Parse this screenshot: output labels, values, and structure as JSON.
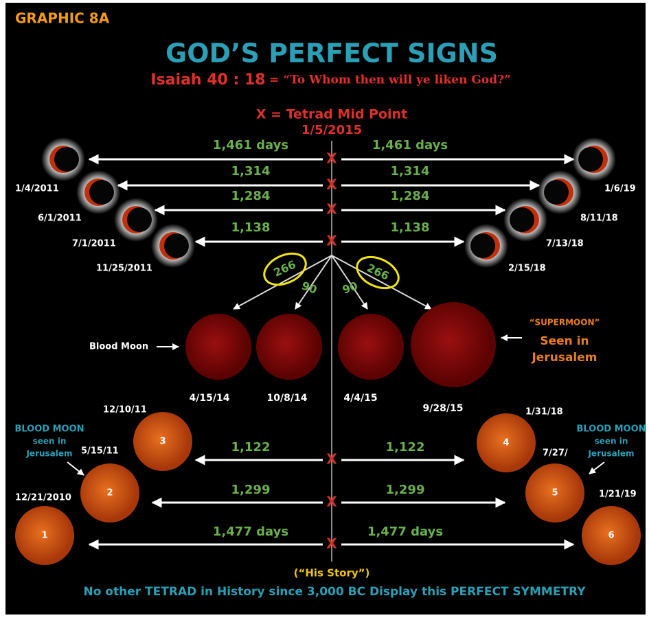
{
  "header": {
    "label": "GRAPHIC 8A",
    "title": "GOD’S PERFECT SIGNS",
    "verse": "Isaiah 40 : 18",
    "quote": "= “To Whom then will ye liken God?”"
  },
  "midpoint": {
    "label": "X = Tetrad Mid Point",
    "date": "1/5/2015",
    "marker": "X"
  },
  "upper_spans": [
    {
      "left": "1,461 days",
      "right": "1,461 days"
    },
    {
      "left": "1,314",
      "right": "1,314"
    },
    {
      "left": "1,284",
      "right": "1,284"
    },
    {
      "left": "1,138",
      "right": "1,138"
    }
  ],
  "upper_left_dates": [
    "1/4/2011",
    "6/1/2011",
    "7/1/2011",
    "11/25/2011"
  ],
  "upper_right_dates": [
    "1/6/19",
    "8/11/18",
    "7/13/18",
    "2/15/18"
  ],
  "tetrad_intervals": [
    "266",
    "90",
    "90",
    "266"
  ],
  "blood_moons": {
    "label": "Blood Moon",
    "dates": [
      "4/15/14",
      "10/8/14",
      "4/4/15",
      "9/28/15"
    ],
    "supermoon": "“SUPERMOON”",
    "seen": "Seen in",
    "place": "Jerusalem"
  },
  "lower_moons": [
    {
      "number": "1",
      "date": "12/21/2010"
    },
    {
      "number": "2",
      "date": "5/15/11"
    },
    {
      "number": "3",
      "date": "12/10/11"
    },
    {
      "number": "4",
      "date": "1/31/18"
    },
    {
      "number": "5",
      "date": "7/27/"
    },
    {
      "number": "6",
      "date": "1/21/19"
    }
  ],
  "jerusalem_note": [
    "BLOOD MOON",
    "seen in",
    "Jerusalem"
  ],
  "lower_spans": [
    {
      "left": "1,122",
      "right": "1,122"
    },
    {
      "left": "1,299",
      "right": "1,299"
    },
    {
      "left": "1,477 days",
      "right": "1,477 days"
    }
  ],
  "footer": {
    "caption": "(“His Story”)",
    "statement": "No other TETRAD in History since 3,000 BC Display this PERFECT SYMMETRY"
  }
}
